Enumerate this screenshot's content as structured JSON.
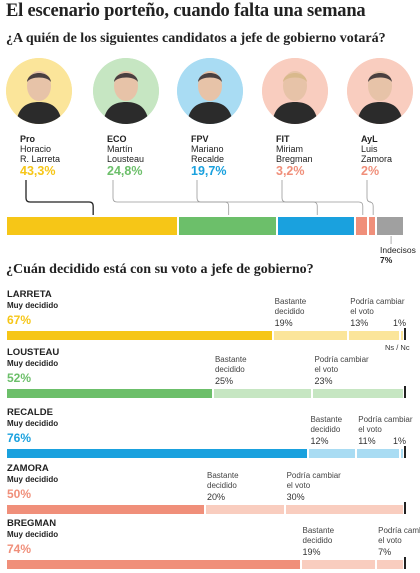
{
  "title": "El escenario porteño, cuando falta una semana",
  "question1": "¿A quién de los siguientes candidatos a jefe de gobierno votará?",
  "question2": "¿Cuán decidido está con su voto a jefe de gobierno?",
  "candidates": [
    {
      "party": "Pro",
      "name1": "Horacio",
      "name2": "R. Larreta",
      "pct": "43,3%",
      "color": "#f6c617",
      "bg": "#fbe59a",
      "icon": "larreta-photo"
    },
    {
      "party": "ECO",
      "name1": "Martín",
      "name2": "Lousteau",
      "pct": "24,8%",
      "color": "#6cbf6a",
      "bg": "#c6e6c2",
      "icon": "lousteau-photo"
    },
    {
      "party": "FPV",
      "name1": "Mariano",
      "name2": "Recalde",
      "pct": "19,7%",
      "color": "#1aa1de",
      "bg": "#a9dcf3",
      "icon": "recalde-photo"
    },
    {
      "party": "FIT",
      "name1": "Miriam",
      "name2": "Bregman",
      "pct": "3,2%",
      "color": "#f08f7a",
      "bg": "#f9cdbf",
      "icon": "bregman-photo"
    },
    {
      "party": "AyL",
      "name1": "Luis",
      "name2": "Zamora",
      "pct": "2%",
      "color": "#f08f7a",
      "bg": "#f9cdbf",
      "icon": "zamora-photo"
    }
  ],
  "indecisos": {
    "label": "Indecisos",
    "pct": "7%",
    "color": "#a0a0a0"
  },
  "labels": {
    "muy_decidido": "Muy decidido",
    "bastante": "Bastante\ndecidido",
    "podria": "Podría cambiar\nel voto",
    "nsnc": "Ns / Nc"
  },
  "chart_data": [
    {
      "type": "bar",
      "title": "¿A quién de los siguientes candidatos a jefe de gobierno votará?",
      "categories": [
        "Horacio R. Larreta",
        "Martín Lousteau",
        "Mariano Recalde",
        "Miriam Bregman",
        "Luis Zamora",
        "Indecisos"
      ],
      "values": [
        43.3,
        24.8,
        19.7,
        3.2,
        2,
        7
      ],
      "stacked": true,
      "colors": [
        "#f6c617",
        "#6cbf6a",
        "#1aa1de",
        "#f08f7a",
        "#f08f7a",
        "#a0a0a0"
      ]
    },
    {
      "type": "bar",
      "title": "¿Cuán decidido está con su voto a jefe de gobierno?",
      "stacked": true,
      "series_names": [
        "Muy decidido",
        "Bastante decidido",
        "Podría cambiar el voto",
        "Ns / Nc"
      ],
      "rows": [
        {
          "name": "LARRETA",
          "values": [
            67,
            19,
            13,
            1
          ],
          "labels": [
            "67%",
            "19%",
            "13%",
            "1%"
          ],
          "color": "#f6c617",
          "light": "#fbe59a"
        },
        {
          "name": "LOUSTEAU",
          "values": [
            52,
            25,
            23,
            0
          ],
          "labels": [
            "52%",
            "25%",
            "23%",
            ""
          ],
          "color": "#6cbf6a",
          "light": "#c6e6c2"
        },
        {
          "name": "RECALDE",
          "values": [
            76,
            12,
            11,
            1
          ],
          "labels": [
            "76%",
            "12%",
            "11%",
            "1%"
          ],
          "color": "#1aa1de",
          "light": "#a9dcf3"
        },
        {
          "name": "ZAMORA",
          "values": [
            50,
            20,
            30,
            0
          ],
          "labels": [
            "50%",
            "20%",
            "30%",
            ""
          ],
          "color": "#f08f7a",
          "light": "#f9cdbf"
        },
        {
          "name": "BREGMAN",
          "values": [
            74,
            19,
            7,
            0
          ],
          "labels": [
            "74%",
            "19%",
            "7%",
            ""
          ],
          "color": "#f08f7a",
          "light": "#f9cdbf"
        }
      ]
    }
  ]
}
